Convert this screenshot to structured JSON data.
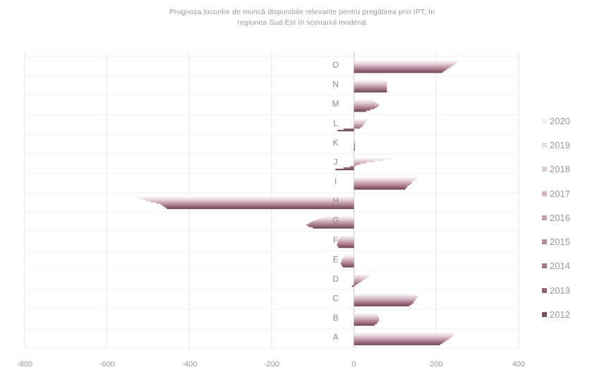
{
  "chart_data": {
    "type": "bar",
    "orientation": "horizontal",
    "title_lines": [
      "Prognoza locurilor de muncă disponibile relevante pentru pregătirea prin IPT, în",
      "regiunea Sud-Est în scenariul moderat"
    ],
    "categories": [
      "O",
      "N",
      "M",
      "L",
      "K",
      "J",
      "I",
      "H",
      "G",
      "F",
      "E",
      "D",
      "C",
      "B",
      "A"
    ],
    "xlim": [
      -800,
      400
    ],
    "xticks": [
      "-800",
      "-600",
      "-400",
      "-200",
      "0",
      "200",
      "400"
    ],
    "grid": "vertical",
    "legend_position": "right",
    "series": [
      {
        "name": "2020",
        "color": "#f4eef0",
        "values": [
          255,
          80,
          45,
          35,
          2,
          90,
          155,
          -525,
          -70,
          -35,
          -25,
          40,
          150,
          55,
          245
        ]
      },
      {
        "name": "2019",
        "color": "#ebdde2",
        "values": [
          250,
          80,
          50,
          30,
          2,
          70,
          150,
          -515,
          -80,
          -35,
          -25,
          35,
          155,
          58,
          240
        ]
      },
      {
        "name": "2018",
        "color": "#e0cbd3",
        "values": [
          245,
          80,
          55,
          28,
          3,
          50,
          145,
          -505,
          -90,
          -38,
          -28,
          30,
          155,
          60,
          240
        ]
      },
      {
        "name": "2017",
        "color": "#d3b6c1",
        "values": [
          240,
          80,
          60,
          25,
          3,
          30,
          140,
          -495,
          -100,
          -38,
          -30,
          25,
          150,
          60,
          235
        ]
      },
      {
        "name": "2016",
        "color": "#c4a0af",
        "values": [
          235,
          80,
          60,
          22,
          3,
          15,
          140,
          -480,
          -105,
          -40,
          -30,
          20,
          150,
          62,
          230
        ]
      },
      {
        "name": "2015",
        "color": "#b58b9c",
        "values": [
          230,
          80,
          55,
          20,
          3,
          5,
          135,
          -470,
          -110,
          -40,
          -32,
          15,
          145,
          60,
          225
        ]
      },
      {
        "name": "2014",
        "color": "#a47588",
        "values": [
          225,
          80,
          50,
          15,
          2,
          -10,
          130,
          -465,
          -115,
          -42,
          -32,
          10,
          145,
          58,
          220
        ]
      },
      {
        "name": "2013",
        "color": "#916174",
        "values": [
          220,
          80,
          40,
          -25,
          2,
          -25,
          128,
          -460,
          -110,
          -40,
          -30,
          5,
          140,
          55,
          215
        ]
      },
      {
        "name": "2012",
        "color": "#7a4d5f",
        "values": [
          215,
          80,
          30,
          -40,
          2,
          -45,
          125,
          -455,
          -100,
          -38,
          -28,
          -5,
          135,
          50,
          210
        ]
      }
    ]
  }
}
